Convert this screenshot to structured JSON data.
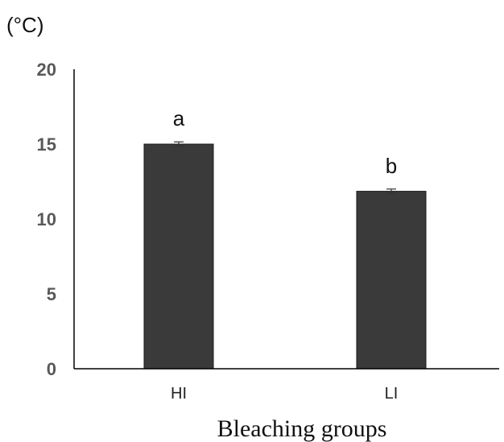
{
  "chart_data": {
    "type": "bar",
    "y_unit_label": "(°C)",
    "xlabel": "Bleaching groups",
    "ylabel": "",
    "title": "",
    "categories": [
      "HI",
      "LI"
    ],
    "values": [
      15.0,
      11.85
    ],
    "error_bars": [
      0.15,
      0.15
    ],
    "significance_letters": [
      "a",
      "b"
    ],
    "ylim": [
      0,
      20
    ],
    "yticks": [
      0,
      5,
      10,
      15,
      20
    ],
    "grid": false,
    "legend": "none",
    "colors": {
      "bar": "#3a3a3a",
      "bar_edge": "#1a1a1a",
      "axis": "#000000",
      "tick_text": "#595959"
    }
  }
}
